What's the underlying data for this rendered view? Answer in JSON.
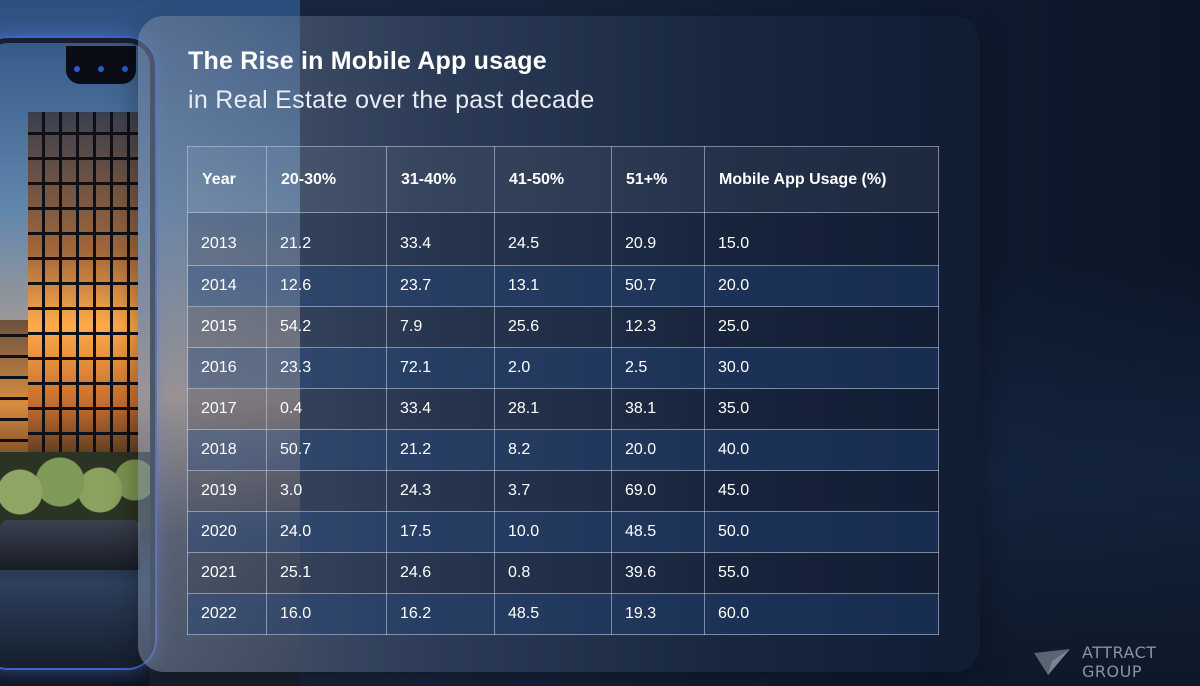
{
  "header": {
    "title": "The Rise in Mobile App usage",
    "subtitle": "in Real Estate over the past decade"
  },
  "chart_data": {
    "type": "table",
    "columns": [
      "Year",
      "20-30%",
      "31-40%",
      "41-50%",
      "51+%",
      "Mobile App Usage (%)"
    ],
    "rows": [
      [
        "2013",
        "21.2",
        "33.4",
        "24.5",
        "20.9",
        "15.0"
      ],
      [
        "2014",
        "12.6",
        "23.7",
        "13.1",
        "50.7",
        "20.0"
      ],
      [
        "2015",
        "54.2",
        "7.9",
        "25.6",
        "12.3",
        "25.0"
      ],
      [
        "2016",
        "23.3",
        "72.1",
        "2.0",
        "2.5",
        "30.0"
      ],
      [
        "2017",
        "0.4",
        "33.4",
        "28.1",
        "38.1",
        "35.0"
      ],
      [
        "2018",
        "50.7",
        "21.2",
        "8.2",
        "20.0",
        "40.0"
      ],
      [
        "2019",
        "3.0",
        "24.3",
        "3.7",
        "69.0",
        "45.0"
      ],
      [
        "2020",
        "24.0",
        "17.5",
        "10.0",
        "48.5",
        "50.0"
      ],
      [
        "2021",
        "25.1",
        "24.6",
        "0.8",
        "39.6",
        "55.0"
      ],
      [
        "2022",
        "16.0",
        "16.2",
        "48.5",
        "19.3",
        "60.0"
      ]
    ]
  },
  "logo": {
    "icon": "paper-plane-icon",
    "text": "ATTRACT GROUP"
  },
  "colors": {
    "background": "#16243c",
    "stripe": "#224278",
    "text": "#ffffff"
  }
}
